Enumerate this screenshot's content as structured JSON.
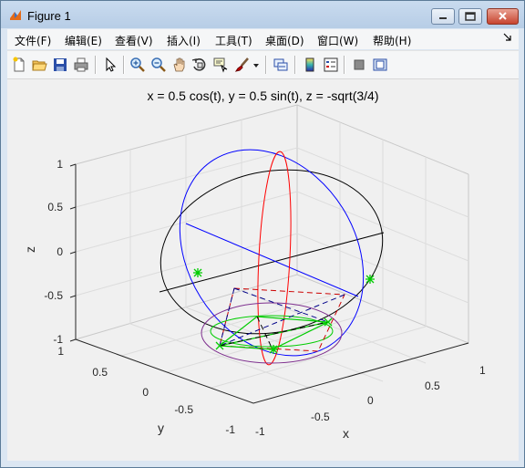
{
  "window": {
    "title": "Figure 1"
  },
  "menu": [
    "文件(F)",
    "编辑(E)",
    "查看(V)",
    "插入(I)",
    "工具(T)",
    "桌面(D)",
    "窗口(W)",
    "帮助(H)"
  ],
  "toolbar": {
    "icons": [
      "new-file-icon",
      "open-file-icon",
      "save-icon",
      "print-icon",
      "select-arrow-icon",
      "zoom-in-icon",
      "zoom-out-icon",
      "pan-icon",
      "rotate-3d-icon",
      "data-cursor-icon",
      "brush-icon",
      "brush-dropdown-icon",
      "link-plot-icon",
      "colorbar-icon",
      "legend-icon",
      "hide-plot-tools-icon",
      "show-plot-tools-icon"
    ]
  },
  "plot": {
    "title": "x = 0.5 cos(t), y = 0.5 sin(t), z = -sqrt(3/4)",
    "z_label": "z",
    "x_label": "x",
    "y_label": "y",
    "z_ticks": [
      "1",
      "0.5",
      "0",
      "-0.5",
      "-1"
    ],
    "x_ticks": [
      "-1",
      "-0.5",
      "0",
      "0.5",
      "1"
    ],
    "y_ticks": [
      "1",
      "0.5",
      "0",
      "-0.5",
      "-1"
    ]
  },
  "colors": {
    "equator": "#000000",
    "meridian_blue": "#0000ff",
    "meridian_red": "#ff0000",
    "circle_purple": "#7e2f8e",
    "square_green": "#00cc00",
    "markers": "#00cc00"
  }
}
